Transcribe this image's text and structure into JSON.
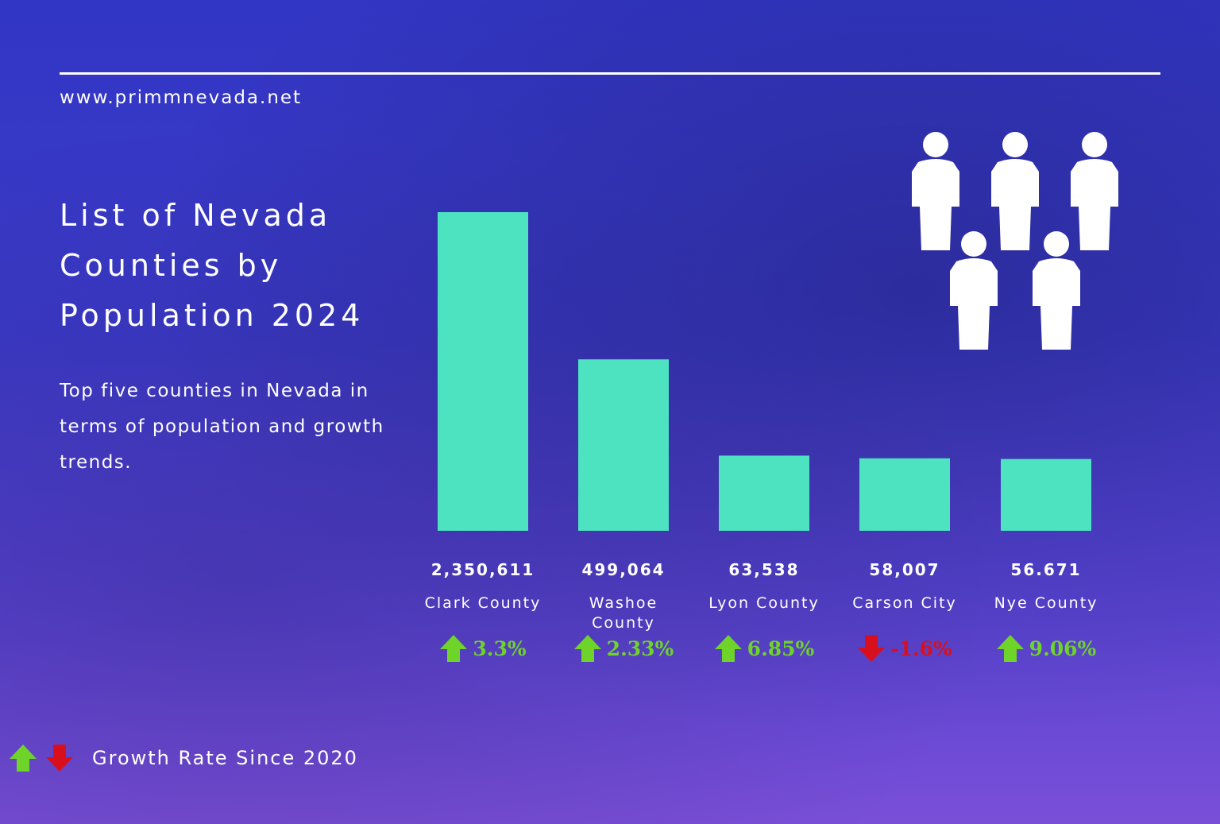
{
  "header": {
    "url": "www.primmnevada.net"
  },
  "title": "List of Nevada Counties by Population 2024",
  "subtitle": "Top five counties in Nevada in terms of population and growth trends.",
  "legend": {
    "label": "Growth Rate Since 2020",
    "icons": [
      "arrow-up-icon",
      "arrow-down-icon"
    ]
  },
  "colors": {
    "bar": "#4de3c1",
    "up": "#6fd42a",
    "down": "#d8101e"
  },
  "chart_data": {
    "type": "bar",
    "categories": [
      "Clark County",
      "Washoe County",
      "Lyon County",
      "Carson City",
      "Nye County"
    ],
    "values": [
      2350611,
      499064,
      63538,
      58007,
      56671
    ],
    "value_labels": [
      "2,350,611",
      "499,064",
      "63,538",
      "58,007",
      "56.671"
    ],
    "growth": [
      "3.3%",
      "2.33%",
      "6.85%",
      "-1.6%",
      "9.06%"
    ],
    "growth_direction": [
      "up",
      "up",
      "up",
      "down",
      "up"
    ],
    "grid": false
  }
}
